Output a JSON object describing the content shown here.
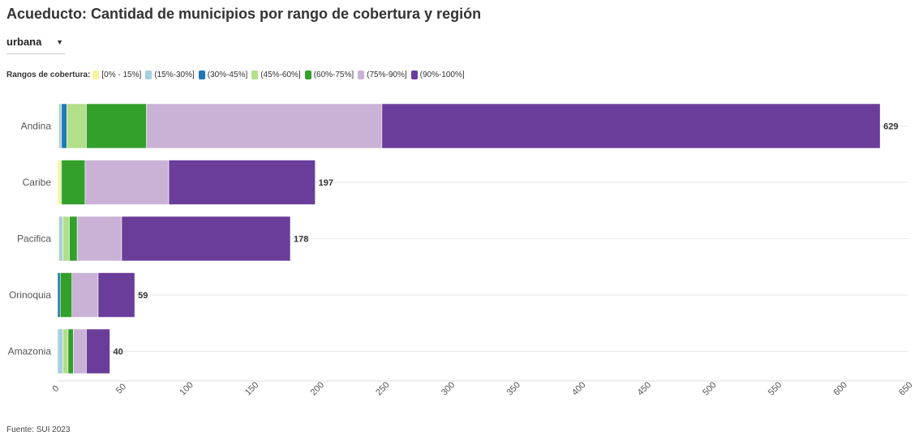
{
  "title": "Acueducto: Cantidad de municipios por rango de cobertura y región",
  "dropdown": {
    "selected": "urbana"
  },
  "legend_title": "Rangos de cobertura:",
  "source": "Fuente: SUI 2023",
  "chart_data": {
    "type": "bar",
    "orientation": "horizontal",
    "stacked": true,
    "categories": [
      "Andina",
      "Caribe",
      "Pacifica",
      "Orinoquia",
      "Amazonia"
    ],
    "series": [
      {
        "name": "[0% - 15%]",
        "color": "#f7f3a0",
        "values": [
          1,
          2,
          1,
          0,
          0
        ]
      },
      {
        "name": "(15%-30%]",
        "color": "#a6cee3",
        "values": [
          2,
          0,
          3,
          0,
          4
        ]
      },
      {
        "name": "(30%-45%]",
        "color": "#1f78b4",
        "values": [
          4,
          0,
          0,
          2,
          0
        ]
      },
      {
        "name": "(45%-60%]",
        "color": "#b2df8a",
        "values": [
          15,
          1,
          5,
          0,
          4
        ]
      },
      {
        "name": "(60%-75%]",
        "color": "#33a02c",
        "values": [
          46,
          18,
          6,
          9,
          4
        ]
      },
      {
        "name": "(75%-90%]",
        "color": "#cab2d6",
        "values": [
          180,
          64,
          34,
          20,
          10
        ]
      },
      {
        "name": "(90%-100%]",
        "color": "#6a3d9a",
        "values": [
          381,
          112,
          129,
          28,
          18
        ]
      }
    ],
    "totals": [
      629,
      197,
      178,
      59,
      40
    ],
    "xlim": [
      0,
      650
    ],
    "xticks": [
      0,
      50,
      100,
      150,
      200,
      250,
      300,
      350,
      400,
      450,
      500,
      550,
      600,
      650
    ],
    "grid": true,
    "legend_position": "top"
  }
}
